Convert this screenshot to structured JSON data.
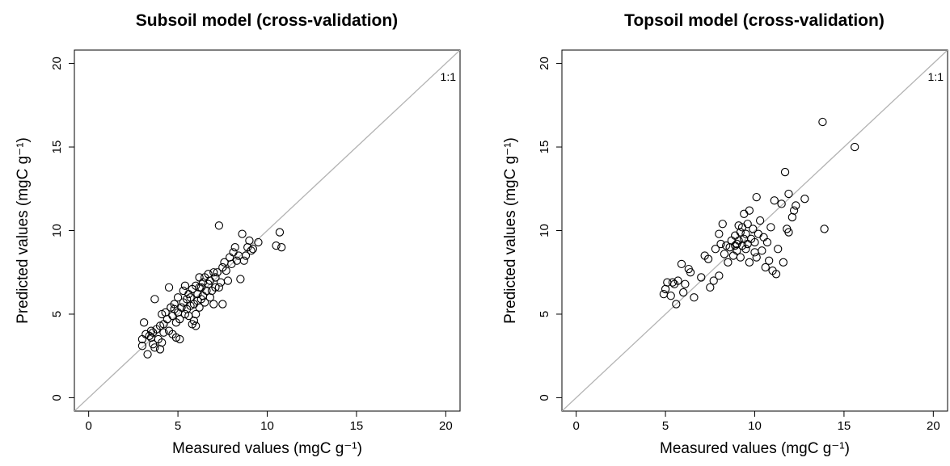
{
  "chart_data": [
    {
      "type": "scatter",
      "title": "Subsoil model (cross-validation)",
      "xlabel": "Measured values (mgC  g⁻¹)",
      "ylabel": "Predicted values (mgC  g⁻¹)",
      "xlim": [
        0,
        20
      ],
      "ylim": [
        0,
        20
      ],
      "xticks": [
        "0",
        "5",
        "10",
        "15",
        "20"
      ],
      "yticks": [
        "0",
        "5",
        "10",
        "15",
        "20"
      ],
      "reference_line_label": "1:1",
      "grid": false,
      "points": [
        [
          3.0,
          3.1
        ],
        [
          3.0,
          3.5
        ],
        [
          3.1,
          4.5
        ],
        [
          3.2,
          3.8
        ],
        [
          3.3,
          2.6
        ],
        [
          3.4,
          3.7
        ],
        [
          3.5,
          3.6
        ],
        [
          3.5,
          4.0
        ],
        [
          3.6,
          3.2
        ],
        [
          3.6,
          3.9
        ],
        [
          3.7,
          3.0
        ],
        [
          3.8,
          4.1
        ],
        [
          3.9,
          3.5
        ],
        [
          4.0,
          2.9
        ],
        [
          4.0,
          4.3
        ],
        [
          4.1,
          3.3
        ],
        [
          4.1,
          5.0
        ],
        [
          4.2,
          3.9
        ],
        [
          4.2,
          4.4
        ],
        [
          3.7,
          5.9
        ],
        [
          4.3,
          5.1
        ],
        [
          4.4,
          4.7
        ],
        [
          4.5,
          6.6
        ],
        [
          4.5,
          4.0
        ],
        [
          4.6,
          5.4
        ],
        [
          4.7,
          4.9
        ],
        [
          4.7,
          3.8
        ],
        [
          4.8,
          5.6
        ],
        [
          4.8,
          5.3
        ],
        [
          4.9,
          4.5
        ],
        [
          4.9,
          3.6
        ],
        [
          5.0,
          5.1
        ],
        [
          5.0,
          6.0
        ],
        [
          5.1,
          3.5
        ],
        [
          5.1,
          4.7
        ],
        [
          5.2,
          5.4
        ],
        [
          5.3,
          5.7
        ],
        [
          5.3,
          6.4
        ],
        [
          5.4,
          5.0
        ],
        [
          5.4,
          6.7
        ],
        [
          5.5,
          5.3
        ],
        [
          5.5,
          5.9
        ],
        [
          5.6,
          4.9
        ],
        [
          5.6,
          6.2
        ],
        [
          5.7,
          5.5
        ],
        [
          5.7,
          6.0
        ],
        [
          5.8,
          4.4
        ],
        [
          5.8,
          6.5
        ],
        [
          5.9,
          5.6
        ],
        [
          5.9,
          4.6
        ],
        [
          6.0,
          5.0
        ],
        [
          6.0,
          6.7
        ],
        [
          6.0,
          4.3
        ],
        [
          6.1,
          5.8
        ],
        [
          6.1,
          6.2
        ],
        [
          6.2,
          5.4
        ],
        [
          6.2,
          6.6
        ],
        [
          6.2,
          7.2
        ],
        [
          6.3,
          5.9
        ],
        [
          6.3,
          6.6
        ],
        [
          6.4,
          6.1
        ],
        [
          6.4,
          6.9
        ],
        [
          6.5,
          5.7
        ],
        [
          6.5,
          7.2
        ],
        [
          6.6,
          6.4
        ],
        [
          6.7,
          6.8
        ],
        [
          6.7,
          7.4
        ],
        [
          6.8,
          6.0
        ],
        [
          6.8,
          7.0
        ],
        [
          6.9,
          6.4
        ],
        [
          7.0,
          7.5
        ],
        [
          7.0,
          5.6
        ],
        [
          7.1,
          6.6
        ],
        [
          7.1,
          7.2
        ],
        [
          7.2,
          7.5
        ],
        [
          7.3,
          6.6
        ],
        [
          7.3,
          10.3
        ],
        [
          7.4,
          6.9
        ],
        [
          7.5,
          7.8
        ],
        [
          7.5,
          5.6
        ],
        [
          7.6,
          8.1
        ],
        [
          7.7,
          7.6
        ],
        [
          7.8,
          7.0
        ],
        [
          7.9,
          8.4
        ],
        [
          8.0,
          8.0
        ],
        [
          8.1,
          8.7
        ],
        [
          8.2,
          9.0
        ],
        [
          8.3,
          8.2
        ],
        [
          8.4,
          8.5
        ],
        [
          8.5,
          7.1
        ],
        [
          8.6,
          9.8
        ],
        [
          8.7,
          8.2
        ],
        [
          8.8,
          8.5
        ],
        [
          8.9,
          9.0
        ],
        [
          9.0,
          9.4
        ],
        [
          9.1,
          8.8
        ],
        [
          9.2,
          8.9
        ],
        [
          9.5,
          9.3
        ],
        [
          10.5,
          9.1
        ],
        [
          10.7,
          9.9
        ],
        [
          10.8,
          9.0
        ]
      ]
    },
    {
      "type": "scatter",
      "title": "Topsoil model (cross-validation)",
      "xlabel": "Measured values (mgC  g⁻¹)",
      "ylabel": "Predicted values (mgC  g⁻¹)",
      "xlim": [
        0,
        20
      ],
      "ylim": [
        0,
        20
      ],
      "xticks": [
        "0",
        "5",
        "10",
        "15",
        "20"
      ],
      "yticks": [
        "0",
        "5",
        "10",
        "15",
        "20"
      ],
      "reference_line_label": "1:1",
      "grid": false,
      "points": [
        [
          4.9,
          6.2
        ],
        [
          5.0,
          6.5
        ],
        [
          5.1,
          6.9
        ],
        [
          5.3,
          6.1
        ],
        [
          5.4,
          6.9
        ],
        [
          5.5,
          6.8
        ],
        [
          5.6,
          5.6
        ],
        [
          5.7,
          7.0
        ],
        [
          5.9,
          8.0
        ],
        [
          6.0,
          6.3
        ],
        [
          6.1,
          6.8
        ],
        [
          6.3,
          7.7
        ],
        [
          6.4,
          7.5
        ],
        [
          6.6,
          6.0
        ],
        [
          7.0,
          7.2
        ],
        [
          7.2,
          8.5
        ],
        [
          7.4,
          8.3
        ],
        [
          7.5,
          6.6
        ],
        [
          7.7,
          7.0
        ],
        [
          7.8,
          8.9
        ],
        [
          8.0,
          7.3
        ],
        [
          8.0,
          9.8
        ],
        [
          8.1,
          9.2
        ],
        [
          8.2,
          10.4
        ],
        [
          8.3,
          8.6
        ],
        [
          8.4,
          9.1
        ],
        [
          8.5,
          8.1
        ],
        [
          8.6,
          9.0
        ],
        [
          8.7,
          9.4
        ],
        [
          8.8,
          8.5
        ],
        [
          8.9,
          9.1
        ],
        [
          8.9,
          9.7
        ],
        [
          9.0,
          8.8
        ],
        [
          9.0,
          9.2
        ],
        [
          9.1,
          10.3
        ],
        [
          9.1,
          9.4
        ],
        [
          9.2,
          8.4
        ],
        [
          9.2,
          9.9
        ],
        [
          9.3,
          9.1
        ],
        [
          9.3,
          10.2
        ],
        [
          9.4,
          9.5
        ],
        [
          9.4,
          11.0
        ],
        [
          9.5,
          8.9
        ],
        [
          9.5,
          9.8
        ],
        [
          9.6,
          9.2
        ],
        [
          9.6,
          10.4
        ],
        [
          9.7,
          8.1
        ],
        [
          9.7,
          11.2
        ],
        [
          9.8,
          9.5
        ],
        [
          9.9,
          10.1
        ],
        [
          10.0,
          8.7
        ],
        [
          10.0,
          9.3
        ],
        [
          10.1,
          12.0
        ],
        [
          10.1,
          8.4
        ],
        [
          10.2,
          9.8
        ],
        [
          10.3,
          10.6
        ],
        [
          10.4,
          8.8
        ],
        [
          10.5,
          9.6
        ],
        [
          10.6,
          7.8
        ],
        [
          10.7,
          9.3
        ],
        [
          10.8,
          8.2
        ],
        [
          10.9,
          10.2
        ],
        [
          11.0,
          7.6
        ],
        [
          11.1,
          11.8
        ],
        [
          11.2,
          7.4
        ],
        [
          11.3,
          8.9
        ],
        [
          11.5,
          11.6
        ],
        [
          11.6,
          8.1
        ],
        [
          11.7,
          13.5
        ],
        [
          11.8,
          10.1
        ],
        [
          11.9,
          9.9
        ],
        [
          11.9,
          12.2
        ],
        [
          12.1,
          10.8
        ],
        [
          12.2,
          11.2
        ],
        [
          12.3,
          11.5
        ],
        [
          12.8,
          11.9
        ],
        [
          13.8,
          16.5
        ],
        [
          13.9,
          10.1
        ],
        [
          15.6,
          15.0
        ]
      ]
    }
  ]
}
